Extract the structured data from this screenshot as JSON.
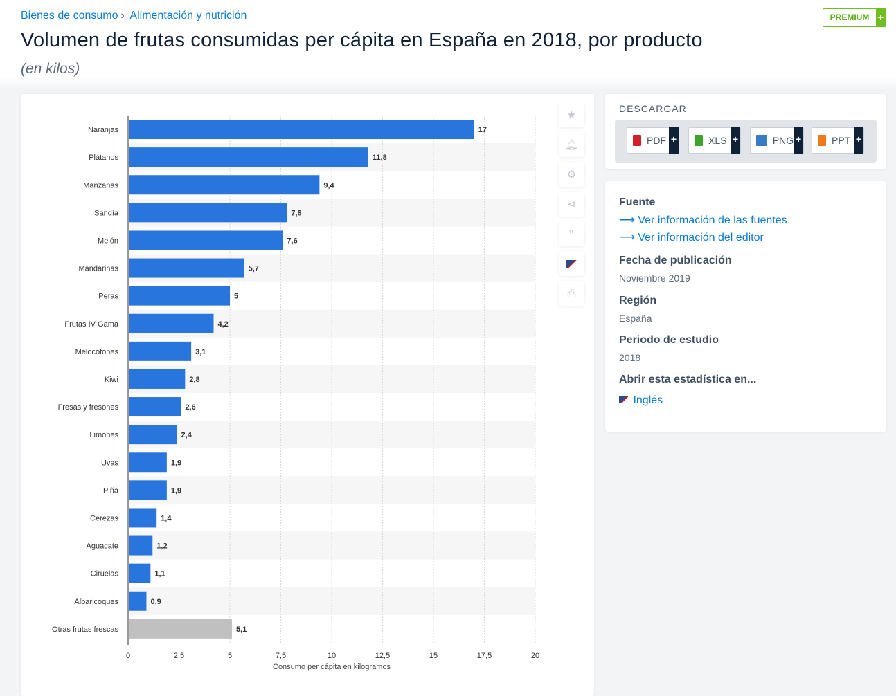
{
  "breadcrumb": [
    "Bienes de consumo",
    "Alimentación y nutrición"
  ],
  "breadcrumb_sep": "›",
  "premium": {
    "label": "PREMIUM",
    "plus": "+"
  },
  "title": "Volumen de frutas consumidas per cápita en España en 2018, por producto",
  "subtitle": "(en kilos)",
  "tools": [
    "star-icon",
    "bell-icon",
    "gear-icon",
    "share-icon",
    "quote-icon",
    "flag-uk-icon",
    "print-icon"
  ],
  "download": {
    "heading": "DESCARGAR",
    "buttons": [
      {
        "label": "PDF",
        "color": "#d4202b"
      },
      {
        "label": "XLS",
        "color": "#3ea52c"
      },
      {
        "label": "PNG",
        "color": "#3a7bc8"
      },
      {
        "label": "PPT",
        "color": "#f07a1a"
      }
    ],
    "plus": "+"
  },
  "info": {
    "source_heading": "Fuente",
    "source_links": [
      "Ver información de las fuentes",
      "Ver información del editor"
    ],
    "arrow": "⟶",
    "pub_heading": "Fecha de publicación",
    "pub_value": "Noviembre 2019",
    "region_heading": "Región",
    "region_value": "España",
    "period_heading": "Periodo de estudio",
    "period_value": "2018",
    "open_heading": "Abrir esta estadística en...",
    "open_link": "Inglés"
  },
  "chart_data": {
    "type": "bar",
    "orientation": "horizontal",
    "categories": [
      "Naranjas",
      "Plátanos",
      "Manzanas",
      "Sandía",
      "Melón",
      "Mandarinas",
      "Peras",
      "Frutas IV Gama",
      "Melocotones",
      "Kiwi",
      "Fresas y fresones",
      "Limones",
      "Uvas",
      "Piña",
      "Cerezas",
      "Aguacate",
      "Ciruelas",
      "Albaricoques",
      "Otras frutas frescas"
    ],
    "values": [
      17,
      11.8,
      9.4,
      7.8,
      7.6,
      5.7,
      5,
      4.2,
      3.1,
      2.8,
      2.6,
      2.4,
      1.9,
      1.9,
      1.4,
      1.2,
      1.1,
      0.9,
      5.1
    ],
    "value_labels": [
      "17",
      "11,8",
      "9,4",
      "7,8",
      "7,6",
      "5,7",
      "5",
      "4,2",
      "3,1",
      "2,8",
      "2,6",
      "2,4",
      "1,9",
      "1,9",
      "1,4",
      "1,2",
      "1,1",
      "0,9",
      "5,1"
    ],
    "xlabel": "Consumo per cápita en kilogramos",
    "xlim": [
      0,
      20
    ],
    "xticks": [
      "0",
      "2,5",
      "5",
      "7,5",
      "10",
      "12,5",
      "15",
      "17,5",
      "20"
    ],
    "colors": {
      "main": "#2876dd",
      "other": "#c0c0c0"
    },
    "grid": true
  }
}
